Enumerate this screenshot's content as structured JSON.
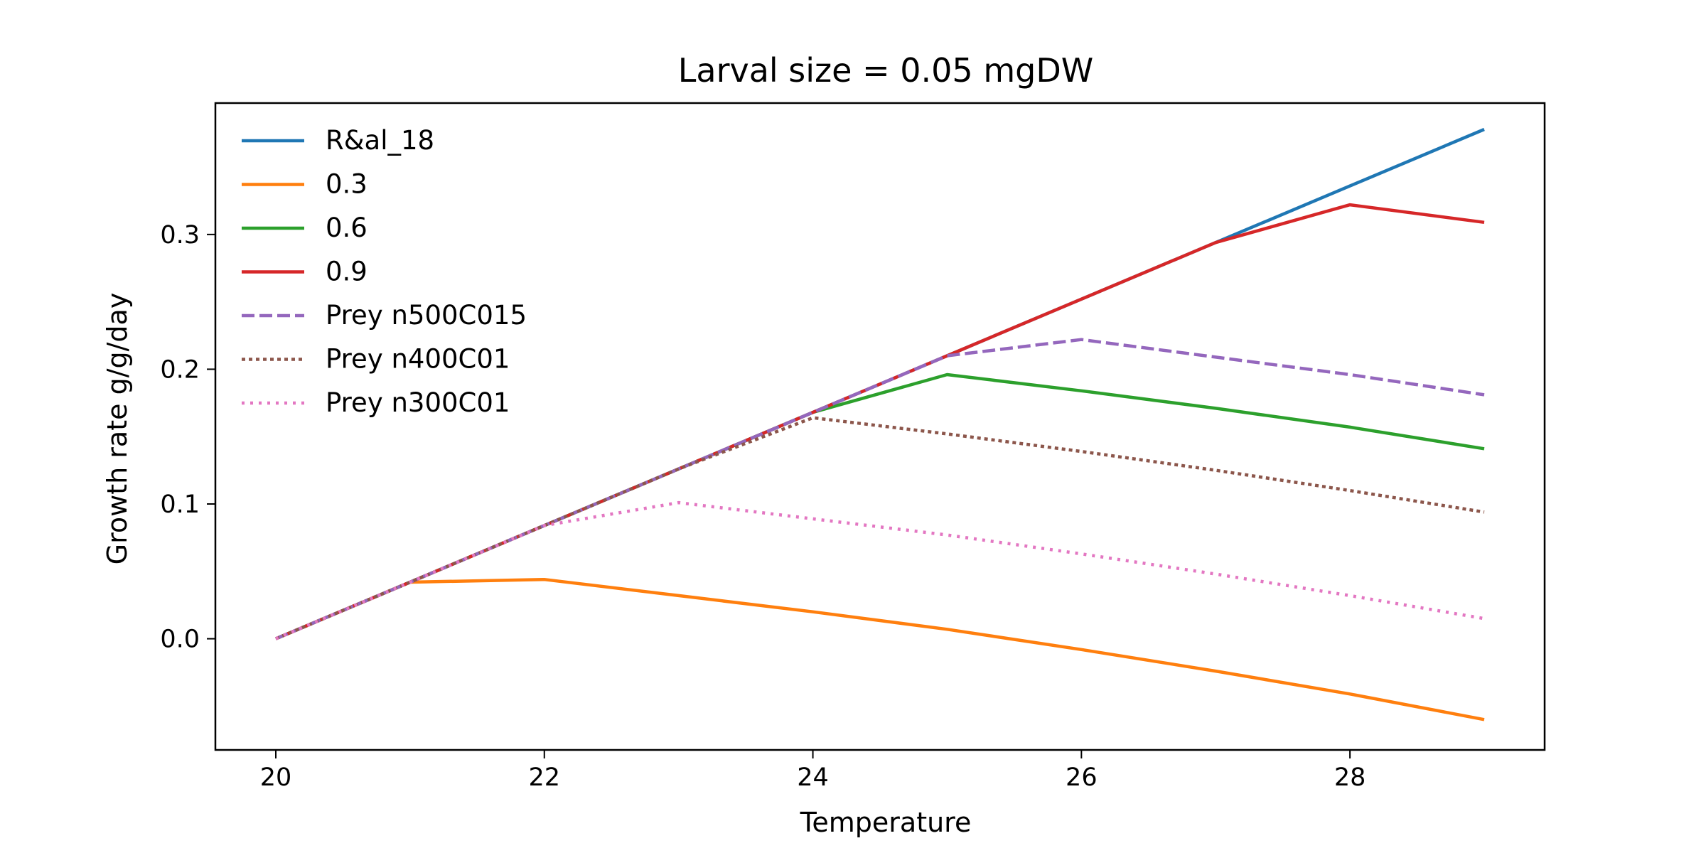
{
  "chart_data": {
    "type": "line",
    "title": "Larval size = 0.05 mgDW",
    "xlabel": "Temperature",
    "ylabel": "Growth rate g/g/day",
    "xlim": [
      19.55,
      29.45
    ],
    "ylim": [
      -0.0825,
      0.3975
    ],
    "x_ticks": [
      20,
      22,
      24,
      26,
      28
    ],
    "y_ticks": [
      0.0,
      0.1,
      0.2,
      0.3
    ],
    "x_tick_labels": [
      "20",
      "22",
      "24",
      "26",
      "28"
    ],
    "y_tick_labels": [
      "0.0",
      "0.1",
      "0.2",
      "0.3"
    ],
    "grid": false,
    "legend_position": "upper-left",
    "x": [
      20,
      21,
      22,
      23,
      24,
      25,
      26,
      27,
      28,
      29
    ],
    "series": [
      {
        "name": "R&al_18",
        "color": "#1f77b4",
        "style": "solid",
        "values": [
          0.0,
          0.042,
          0.084,
          0.126,
          0.168,
          0.21,
          0.252,
          0.294,
          0.336,
          0.378
        ]
      },
      {
        "name": "0.3",
        "color": "#ff7f0e",
        "style": "solid",
        "values": [
          0.0,
          0.042,
          0.044,
          0.032,
          0.02,
          0.007,
          -0.008,
          -0.024,
          -0.041,
          -0.06
        ]
      },
      {
        "name": "0.6",
        "color": "#2ca02c",
        "style": "solid",
        "values": [
          0.0,
          0.042,
          0.084,
          0.126,
          0.168,
          0.196,
          0.184,
          0.171,
          0.157,
          0.141
        ]
      },
      {
        "name": "0.9",
        "color": "#d62728",
        "style": "solid",
        "values": [
          0.0,
          0.042,
          0.084,
          0.126,
          0.168,
          0.21,
          0.252,
          0.294,
          0.322,
          0.309
        ]
      },
      {
        "name": "Prey n500C015",
        "color": "#9467bd",
        "style": "dashed",
        "values": [
          0.0,
          0.042,
          0.084,
          0.126,
          0.168,
          0.21,
          0.222,
          0.209,
          0.196,
          0.181
        ]
      },
      {
        "name": "Prey n400C01",
        "color": "#8c564b",
        "style": "dotted",
        "values": [
          0.0,
          0.042,
          0.084,
          0.126,
          0.164,
          0.152,
          0.139,
          0.125,
          0.11,
          0.094
        ]
      },
      {
        "name": "Prey n300C01",
        "color": "#e377c2",
        "style": "dotted-fine",
        "values": [
          0.0,
          0.042,
          0.084,
          0.101,
          0.089,
          0.077,
          0.063,
          0.048,
          0.032,
          0.015
        ]
      }
    ]
  }
}
